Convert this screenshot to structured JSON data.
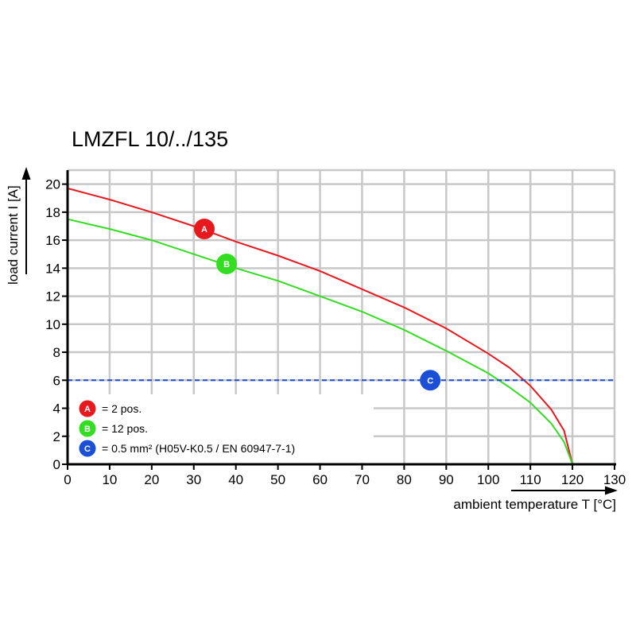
{
  "chart_data": {
    "type": "line",
    "title": "LMZFL 10/../135",
    "xlabel": "ambient temperature T [°C]",
    "ylabel": "load current I [A]",
    "xlim": [
      0,
      130
    ],
    "ylim": [
      0,
      21
    ],
    "x_ticks": [
      "0",
      "10",
      "20",
      "30",
      "40",
      "50",
      "60",
      "70",
      "80",
      "90",
      "100",
      "110",
      "120",
      "130"
    ],
    "y_ticks": [
      "0",
      "2",
      "4",
      "6",
      "8",
      "10",
      "12",
      "14",
      "16",
      "18",
      "20"
    ],
    "grid": true,
    "series": [
      {
        "marker": "A",
        "color": "#e8191e",
        "x": [
          0,
          10,
          20,
          30,
          40,
          50,
          60,
          70,
          80,
          90,
          100,
          105,
          110,
          115,
          118,
          120
        ],
        "y": [
          19.7,
          18.9,
          18.0,
          17.0,
          15.9,
          14.9,
          13.8,
          12.5,
          11.2,
          9.7,
          7.9,
          6.9,
          5.6,
          3.9,
          2.4,
          0
        ]
      },
      {
        "marker": "B",
        "color": "#33dd22",
        "x": [
          0,
          10,
          20,
          30,
          40,
          50,
          60,
          70,
          80,
          90,
          100,
          105,
          110,
          115,
          118,
          120
        ],
        "y": [
          17.5,
          16.8,
          16.0,
          15.0,
          14.0,
          13.1,
          12.0,
          10.9,
          9.6,
          8.1,
          6.5,
          5.5,
          4.4,
          2.9,
          1.6,
          0
        ]
      },
      {
        "marker": "C",
        "color": "#1a4fd6",
        "dashed": true,
        "x": [
          0,
          130
        ],
        "y": [
          6,
          6
        ]
      }
    ],
    "markers": [
      {
        "letter": "A",
        "color": "#e8191e",
        "x": 32.5,
        "y": 16.8
      },
      {
        "letter": "B",
        "color": "#33dd22",
        "x": 37.8,
        "y": 14.3
      },
      {
        "letter": "C",
        "color": "#1a4fd6",
        "x": 86.2,
        "y": 6.0
      }
    ],
    "legend": {
      "placement": "bottom-left",
      "entries": [
        {
          "letter": "A",
          "color": "#e8191e",
          "text": "= 2 pos."
        },
        {
          "letter": "B",
          "color": "#33dd22",
          "text": "= 12 pos."
        },
        {
          "letter": "C",
          "color": "#1a4fd6",
          "text": "= 0.5 mm² (H05V-K0.5 / EN 60947-7-1)"
        }
      ]
    }
  }
}
